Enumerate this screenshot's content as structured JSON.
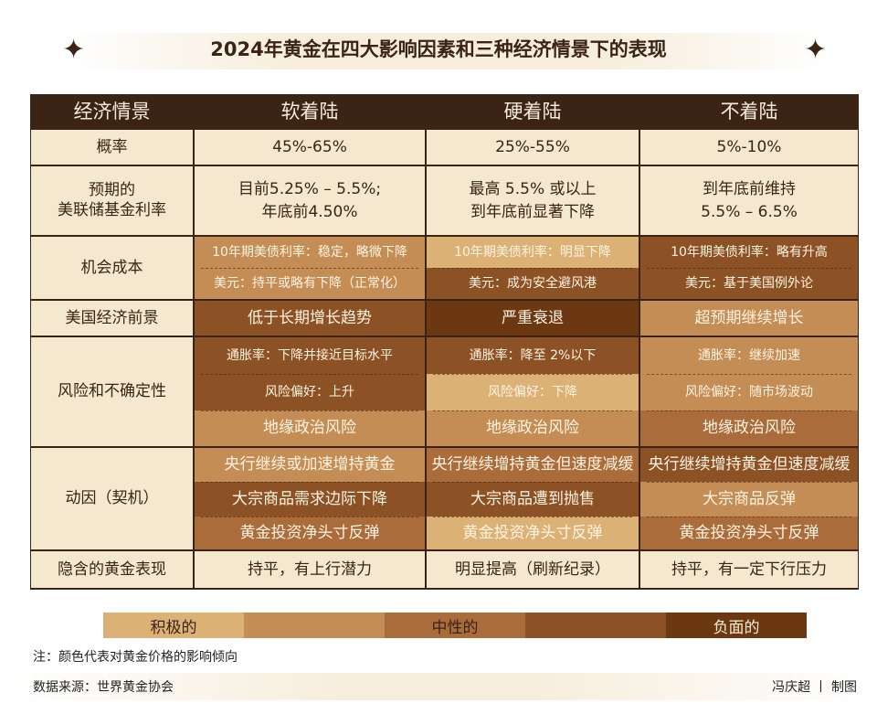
{
  "title": "2024年黄金在四大影响因素和三种经济情景下的表现",
  "colors": {
    "level1": "#dcb176",
    "level2": "#c48d55",
    "level3": "#a96c3a",
    "level4": "#8c5226",
    "level5": "#6b3812",
    "header": "#3b2316",
    "cream": "#f4e8cf"
  },
  "header": [
    "经济情景",
    "软着陆",
    "硬着陆",
    "不着陆"
  ],
  "rows": {
    "probability": {
      "label": "概率",
      "values": [
        "45%-65%",
        "25%-55%",
        "5%-10%"
      ]
    },
    "fed_rate": {
      "label1": "预期的",
      "label2": "美联储基金利率",
      "values": [
        [
          "目前5.25% – 5.5%;",
          "年底前4.50%"
        ],
        [
          "最高 5.5% 或以上",
          "到年底前显著下降"
        ],
        [
          "到年底前维持",
          "5.5% – 6.5%"
        ]
      ]
    },
    "opportunity_cost": {
      "label": "机会成本",
      "cells": [
        [
          {
            "text": "10年期美债利率：稳定，略微下降",
            "level": 2
          },
          {
            "text": "美元：持平或略有下降（正常化）",
            "level": 2
          }
        ],
        [
          {
            "text": "10年期美债利率：明显下降",
            "level": 1
          },
          {
            "text": "美元：成为安全避风港",
            "level": 4
          }
        ],
        [
          {
            "text": "10年期美债利率：略有升高",
            "level": 4
          },
          {
            "text": "美元：基于美国例外论",
            "level": 4
          }
        ]
      ]
    },
    "us_outlook": {
      "label": "美国经济前景",
      "cells": [
        [
          {
            "text": "低于长期增长趋势",
            "level": 4
          }
        ],
        [
          {
            "text": "严重衰退",
            "level": 5
          }
        ],
        [
          {
            "text": "超预期继续增长",
            "level": 2
          }
        ]
      ]
    },
    "risk": {
      "label": "风险和不确定性",
      "cells": [
        [
          {
            "text": "通胀率：下降并接近目标水平",
            "level": 4
          },
          {
            "text": "风险偏好：上升",
            "level": 4
          },
          {
            "text": "地缘政治风险",
            "level": 2
          }
        ],
        [
          {
            "text": "通胀率：降至 2%以下",
            "level": 4
          },
          {
            "text": "风险偏好：下降",
            "level": 1
          },
          {
            "text": "地缘政治风险",
            "level": 2
          }
        ],
        [
          {
            "text": "通胀率：继续加速",
            "level": 2
          },
          {
            "text": "风险偏好：随市场波动",
            "level": 2
          },
          {
            "text": "地缘政治风险",
            "level": 3
          }
        ]
      ]
    },
    "drivers": {
      "label": "动因（契机）",
      "cells": [
        [
          {
            "text": "央行继续或加速增持黄金",
            "level": 2
          },
          {
            "text": "大宗商品需求边际下降",
            "level": 4
          },
          {
            "text": "黄金投资净头寸反弹",
            "level": 3
          }
        ],
        [
          {
            "text": "央行继续增持黄金但速度减缓",
            "level": 3
          },
          {
            "text": "大宗商品遭到抛售",
            "level": 4
          },
          {
            "text": "黄金投资净头寸反弹",
            "level": 1
          }
        ],
        [
          {
            "text": "央行继续增持黄金但速度减缓",
            "level": 4
          },
          {
            "text": "大宗商品反弹",
            "level": 2
          },
          {
            "text": "黄金投资净头寸反弹",
            "level": 3
          }
        ]
      ]
    },
    "gold_performance": {
      "label": "隐含的黄金表现",
      "values": [
        "持平，有上行潜力",
        "明显提高（刷新纪录）",
        "持平，有一定下行压力"
      ]
    }
  },
  "legend": [
    "积极的",
    "",
    "中性的",
    "",
    "负面的"
  ],
  "note": "注：颜色代表对黄金价格的影响倾向",
  "source": "数据来源：世界黄金协会",
  "credit": "冯庆超 丨 制图"
}
